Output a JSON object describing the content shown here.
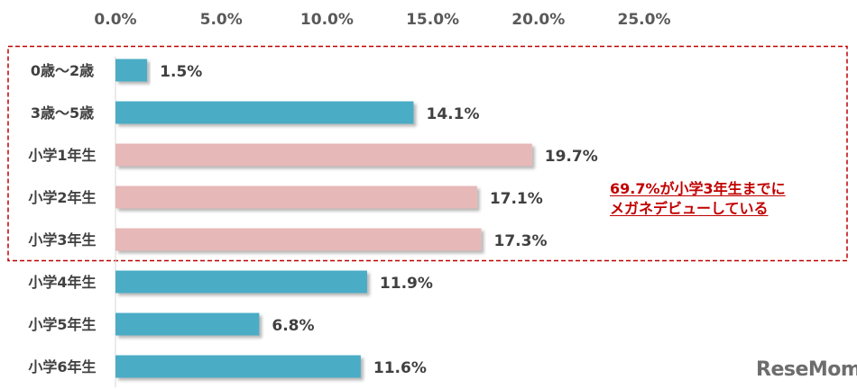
{
  "chart_data": {
    "type": "bar",
    "orientation": "horizontal",
    "categories": [
      "0歳～2歳",
      "3歳～5歳",
      "小学1年生",
      "小学2年生",
      "小学3年生",
      "小学4年生",
      "小学5年生",
      "小学6年生"
    ],
    "values": [
      1.5,
      14.1,
      19.7,
      17.1,
      17.3,
      11.9,
      6.8,
      11.6
    ],
    "value_labels": [
      "1.5%",
      "14.1%",
      "19.7%",
      "17.1%",
      "17.3%",
      "11.9%",
      "6.8%",
      "11.6%"
    ],
    "bar_colors": [
      "#4bacc6",
      "#4bacc6",
      "#e6b8b7",
      "#e6b8b7",
      "#e6b8b7",
      "#4bacc6",
      "#4bacc6",
      "#4bacc6"
    ],
    "x_ticks": [
      "0.0%",
      "5.0%",
      "10.0%",
      "15.0%",
      "20.0%",
      "25.0%"
    ],
    "xlim": [
      0,
      25
    ],
    "x_axis_position": "top",
    "grid": false,
    "highlight_range": [
      0,
      4
    ],
    "highlight_color": "#c00000"
  },
  "annotation": {
    "line1": "69.7%が小学3年生までに",
    "line2": "メガネデビューしている"
  },
  "watermark": "ReseMom"
}
